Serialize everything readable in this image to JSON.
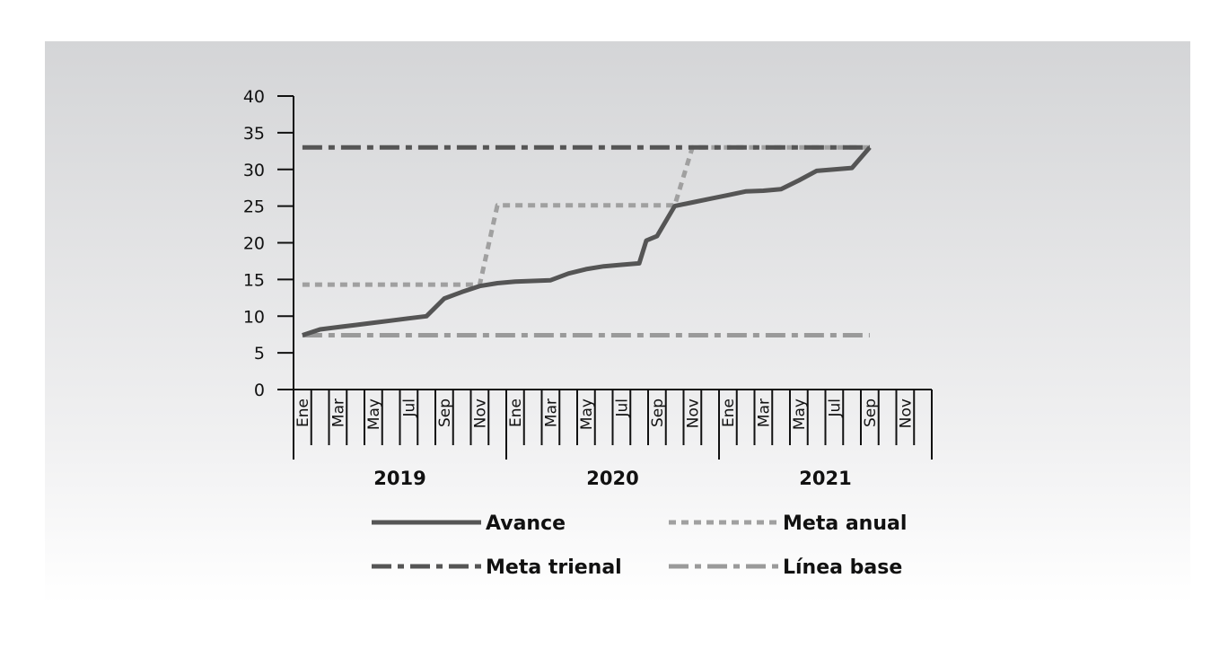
{
  "chart_data": {
    "type": "line",
    "title": "",
    "xlabel": "",
    "ylabel": "",
    "ylim": [
      0,
      40
    ],
    "yticks": [
      "0",
      "5",
      "10",
      "15",
      "20",
      "25",
      "30",
      "35",
      "40"
    ],
    "grid": false,
    "legend_position": "bottom",
    "x": [
      "2019-01",
      "2019-02",
      "2019-03",
      "2019-04",
      "2019-05",
      "2019-06",
      "2019-07",
      "2019-08",
      "2019-09",
      "2019-10",
      "2019-11",
      "2019-12",
      "2020-01",
      "2020-02",
      "2020-03",
      "2020-04",
      "2020-05",
      "2020-06",
      "2020-07",
      "2020-08",
      "2020-09",
      "2020-10",
      "2020-11",
      "2020-12",
      "2021-01",
      "2021-02",
      "2021-03",
      "2021-04",
      "2021-05",
      "2021-06",
      "2021-07",
      "2021-08",
      "2021-09",
      "2021-10",
      "2021-11",
      "2021-12"
    ],
    "month_labels": [
      {
        "month": "2019-01",
        "label": "Ene"
      },
      {
        "month": "2019-03",
        "label": "Mar"
      },
      {
        "month": "2019-05",
        "label": "May"
      },
      {
        "month": "2019-07",
        "label": "Jul"
      },
      {
        "month": "2019-09",
        "label": "Sep"
      },
      {
        "month": "2019-11",
        "label": "Nov"
      },
      {
        "month": "2020-01",
        "label": "Ene"
      },
      {
        "month": "2020-03",
        "label": "Mar"
      },
      {
        "month": "2020-05",
        "label": "May"
      },
      {
        "month": "2020-07",
        "label": "Jul"
      },
      {
        "month": "2020-09",
        "label": "Sep"
      },
      {
        "month": "2020-11",
        "label": "Nov"
      },
      {
        "month": "2021-01",
        "label": "Ene"
      },
      {
        "month": "2021-03",
        "label": "Mar"
      },
      {
        "month": "2021-05",
        "label": "May"
      },
      {
        "month": "2021-07",
        "label": "Jul"
      },
      {
        "month": "2021-09",
        "label": "Sep"
      },
      {
        "month": "2021-11",
        "label": "Nov"
      }
    ],
    "year_groups": [
      "2019",
      "2020",
      "2021"
    ],
    "series": [
      {
        "name": "Avance",
        "style": "solid",
        "color": "#555555",
        "points": [
          {
            "x": "2019-01",
            "y": 7.4
          },
          {
            "x": "2019-02",
            "y": 8.2
          },
          {
            "x": "2019-03",
            "y": 8.5
          },
          {
            "x": "2019-04",
            "y": 8.8
          },
          {
            "x": "2019-05",
            "y": 9.1
          },
          {
            "x": "2019-06",
            "y": 9.4
          },
          {
            "x": "2019-07",
            "y": 9.7
          },
          {
            "x": "2019-08",
            "y": 10.0
          },
          {
            "x": "2019-09",
            "y": 12.4
          },
          {
            "x": "2019-10",
            "y": 13.3
          },
          {
            "x": "2019-11",
            "y": 14.1
          },
          {
            "x": "2019-12",
            "y": 14.5
          },
          {
            "x": "2020-01",
            "y": 14.7
          },
          {
            "x": "2020-02",
            "y": 14.8
          },
          {
            "x": "2020-03",
            "y": 14.9
          },
          {
            "x": "2020-04",
            "y": 15.8
          },
          {
            "x": "2020-05",
            "y": 16.4
          },
          {
            "x": "2020-06",
            "y": 16.8
          },
          {
            "x": "2020-07",
            "y": 17.0
          },
          {
            "x": "2020-08",
            "y": 17.2
          },
          {
            "x": "2020-08b",
            "y": 20.3
          },
          {
            "x": "2020-09",
            "y": 20.9
          },
          {
            "x": "2020-10",
            "y": 25.0
          },
          {
            "x": "2020-11",
            "y": 25.5
          },
          {
            "x": "2020-12",
            "y": 26.0
          },
          {
            "x": "2021-01",
            "y": 26.5
          },
          {
            "x": "2021-02",
            "y": 27.0
          },
          {
            "x": "2021-03",
            "y": 27.1
          },
          {
            "x": "2021-04",
            "y": 27.3
          },
          {
            "x": "2021-05",
            "y": 28.5
          },
          {
            "x": "2021-06",
            "y": 29.8
          },
          {
            "x": "2021-07",
            "y": 30.0
          },
          {
            "x": "2021-08",
            "y": 30.2
          },
          {
            "x": "2021-09",
            "y": 33.0
          }
        ]
      },
      {
        "name": "Meta anual",
        "style": "dotted",
        "color": "#a0a0a0",
        "points": [
          {
            "x": "2019-01",
            "y": 14.3
          },
          {
            "x": "2019-11",
            "y": 14.3
          },
          {
            "x": "2019-12",
            "y": 25.1
          },
          {
            "x": "2020-10",
            "y": 25.1
          },
          {
            "x": "2020-11",
            "y": 33.0
          },
          {
            "x": "2021-09",
            "y": 33.0
          }
        ]
      },
      {
        "name": "Meta trienal",
        "style": "dash-dot",
        "color": "#555555",
        "points": [
          {
            "x": "2019-01",
            "y": 33.0
          },
          {
            "x": "2021-09",
            "y": 33.0
          }
        ]
      },
      {
        "name": "Línea base",
        "style": "dash-dot",
        "color": "#9a9a9a",
        "points": [
          {
            "x": "2019-01",
            "y": 7.4
          },
          {
            "x": "2021-09",
            "y": 7.4
          }
        ]
      }
    ],
    "legend": [
      "Avance",
      "Meta anual",
      "Meta trienal",
      "Línea base"
    ]
  }
}
